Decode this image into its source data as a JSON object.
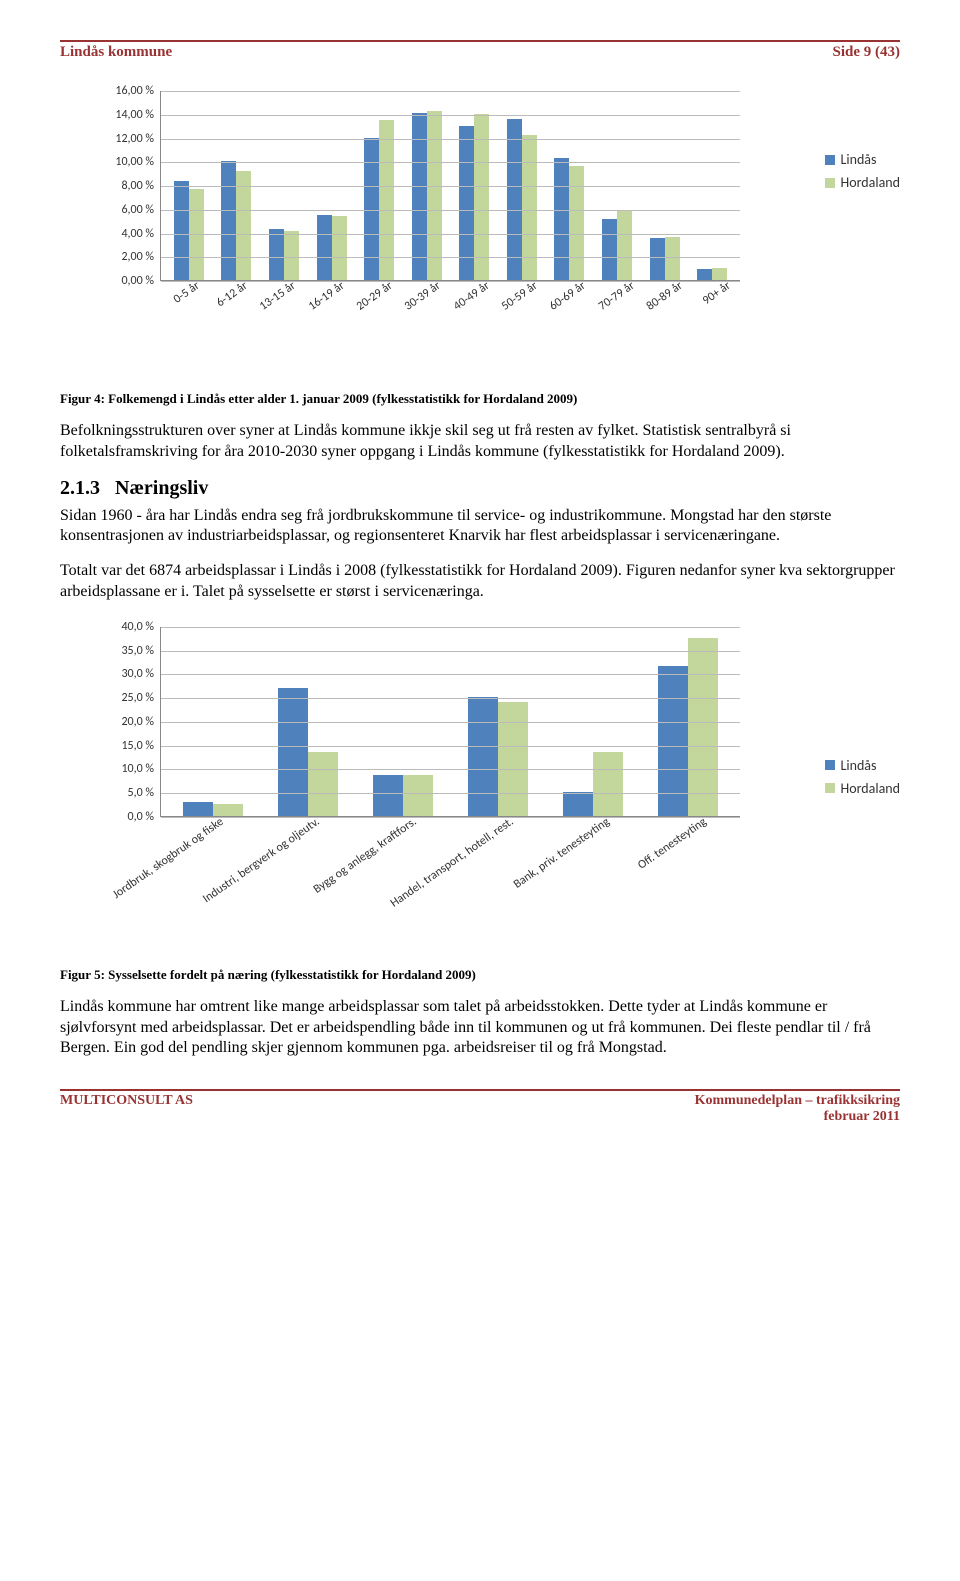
{
  "header": {
    "left": "Lindås kommune",
    "right": "Side 9 (43)"
  },
  "colors": {
    "series_a": "#4f81bd",
    "series_b": "#c3d69b",
    "grid": "#bbbbbb",
    "axis": "#888888",
    "accent": "#993333",
    "text": "#000000"
  },
  "chart1": {
    "type": "bar",
    "ymax": 16,
    "yticks": [
      "0,00 %",
      "2,00 %",
      "4,00 %",
      "6,00 %",
      "8,00 %",
      "10,00 %",
      "12,00 %",
      "14,00 %",
      "16,00 %"
    ],
    "categories": [
      "0-5 år",
      "6-12 år",
      "13-15 år",
      "16-19 år",
      "20-29 år",
      "30-39 år",
      "40-49 år",
      "50-59 år",
      "60-69 år",
      "70-79 år",
      "80-89 år",
      "90+ år"
    ],
    "series": [
      {
        "name": "Lindås",
        "color": "#4f81bd",
        "values": [
          8.3,
          10.0,
          4.3,
          5.5,
          12.0,
          14.1,
          13.0,
          13.6,
          10.3,
          5.1,
          3.5,
          0.9
        ]
      },
      {
        "name": "Hordaland",
        "color": "#c3d69b",
        "values": [
          7.7,
          9.2,
          4.1,
          5.4,
          13.5,
          14.2,
          14.0,
          12.2,
          9.6,
          5.8,
          3.6,
          1.0
        ]
      }
    ]
  },
  "caption1": "Figur 4: Folkemengd i Lindås etter alder 1. januar 2009 (fylkesstatistikk for Hordaland 2009)",
  "para1": "Befolkningsstrukturen over syner at Lindås kommune ikkje skil seg ut frå resten av fylket. Statistisk sentralbyrå si folketalsframskriving for åra 2010-2030 syner oppgang i Lindås kommune (fylkesstatistikk for Hordaland 2009).",
  "section": {
    "number": "2.1.3",
    "title": "Næringsliv"
  },
  "para2": "Sidan 1960 - åra har Lindås endra seg frå jordbrukskommune til service- og industrikommune. Mongstad har den største konsentrasjonen av industriarbeidsplassar, og regionsenteret Knarvik har flest arbeidsplassar i servicenæringane.",
  "para3": "Totalt var det 6874 arbeidsplassar i Lindås i 2008 (fylkesstatistikk for Hordaland 2009). Figuren nedanfor syner kva sektorgrupper arbeidsplassane er i. Talet på sysselsette er størst i servicenæringa.",
  "chart2": {
    "type": "bar",
    "ymax": 40,
    "yticks": [
      "0,0 %",
      "5,0 %",
      "10,0 %",
      "15,0 %",
      "20,0 %",
      "25,0 %",
      "30,0 %",
      "35,0 %",
      "40,0 %"
    ],
    "categories": [
      "Jordbruk, skogbruk og fiske",
      "Industri, bergverk og oljeutv.",
      "Bygg og anlegg, kraftfors.",
      "Handel, transport, hotell, rest.",
      "Bank, priv. tenesteyting",
      "Off. tenesteyting"
    ],
    "series": [
      {
        "name": "Lindås",
        "color": "#4f81bd",
        "values": [
          2.8,
          27.0,
          8.5,
          25.0,
          5.0,
          31.5
        ]
      },
      {
        "name": "Hordaland",
        "color": "#c3d69b",
        "values": [
          2.4,
          13.5,
          8.5,
          24.0,
          13.5,
          37.5
        ]
      }
    ]
  },
  "caption2": "Figur 5: Sysselsette fordelt på næring (fylkesstatistikk for Hordaland 2009)",
  "para4": "Lindås kommune har omtrent like mange arbeidsplassar som talet på arbeidsstokken. Dette tyder at Lindås kommune er sjølvforsynt med arbeidsplassar. Det er arbeidspendling både inn til kommunen og ut frå kommunen. Dei fleste pendlar til / frå Bergen. Ein god del pendling skjer gjennom kommunen pga. arbeidsreiser til og frå Mongstad.",
  "footer": {
    "left": "MULTICONSULT AS",
    "right_line1": "Kommunedelplan – trafikksikring",
    "right_line2": "februar 2011"
  }
}
